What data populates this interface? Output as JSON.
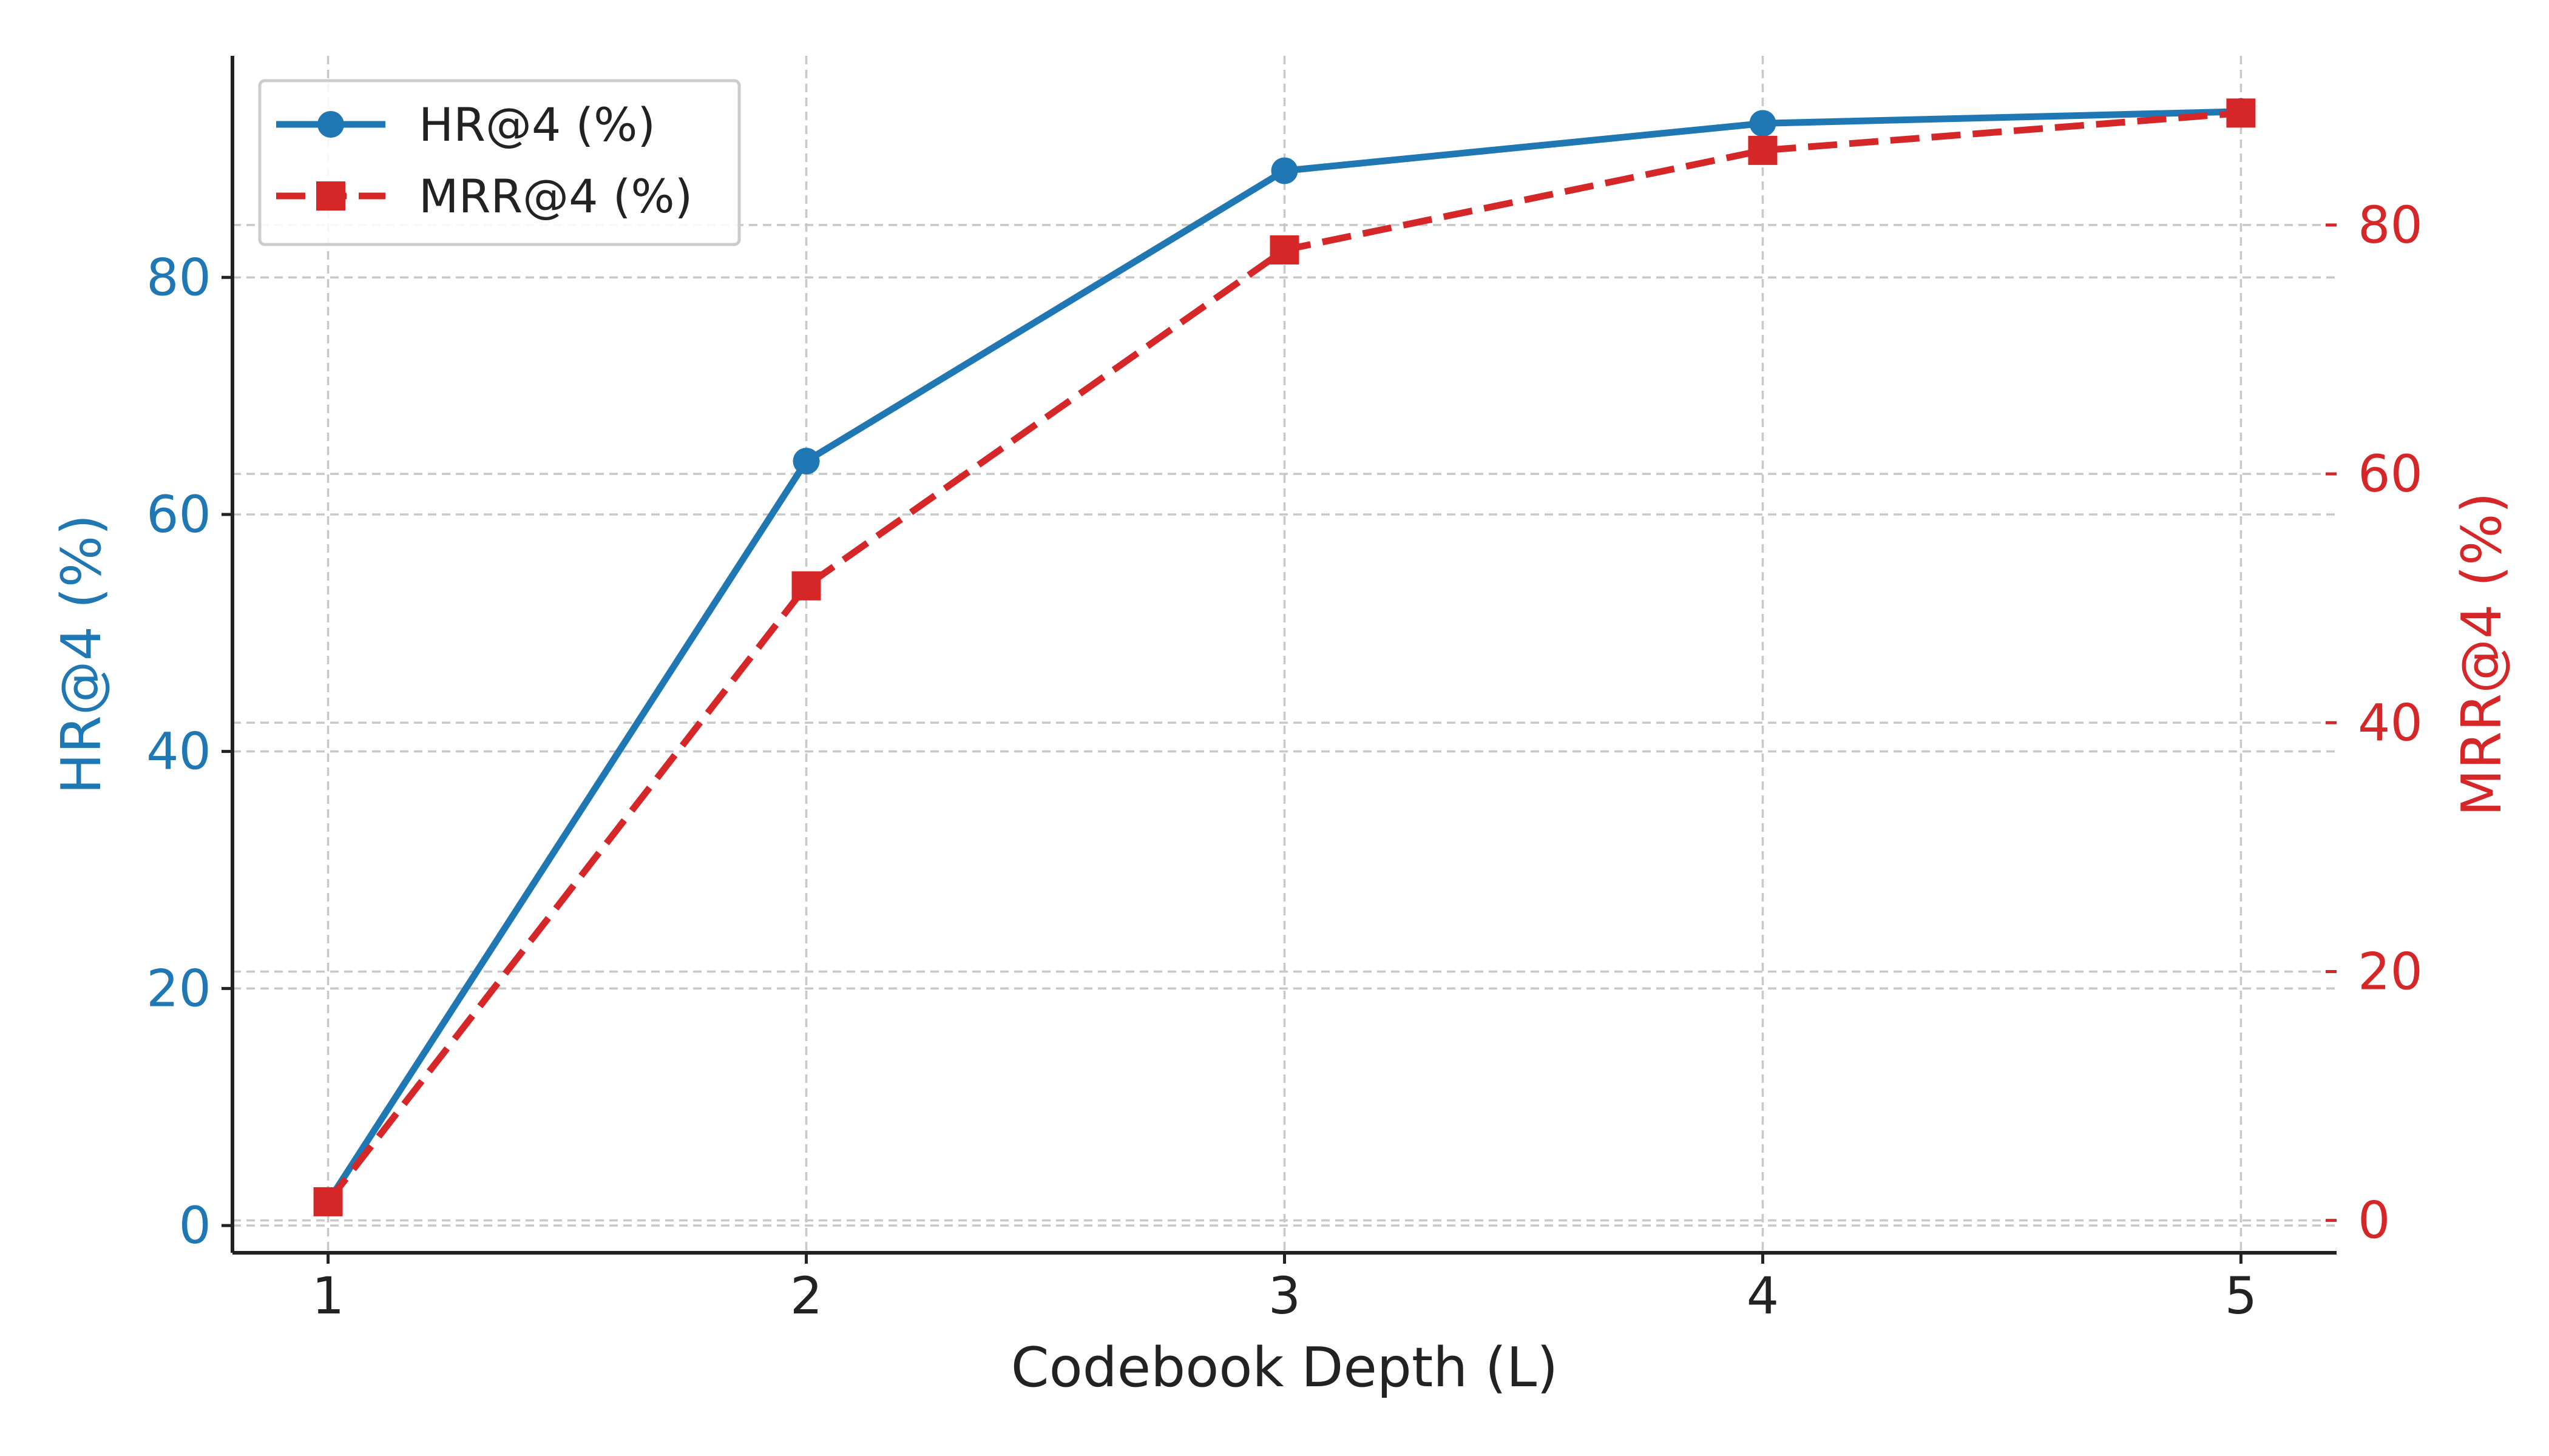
{
  "chart_data": {
    "type": "line",
    "title": "",
    "xlabel": "Codebook Depth (L)",
    "ylabel_left": "HR@4 (%)",
    "ylabel_right": "MRR@4 (%)",
    "x": [
      1,
      2,
      3,
      4,
      5
    ],
    "x_ticks": [
      "1",
      "2",
      "3",
      "4",
      "5"
    ],
    "xlim": [
      0.8,
      5.2
    ],
    "left_axis": {
      "ylim": [
        -2.3,
        98.7
      ],
      "ticks": [
        "0",
        "20",
        "40",
        "60",
        "80"
      ],
      "tick_values": [
        0,
        20,
        40,
        60,
        80
      ],
      "color": "#1f77b4"
    },
    "right_axis": {
      "ylim": [
        -2.6,
        93.6
      ],
      "ticks": [
        "0",
        "20",
        "40",
        "60",
        "80"
      ],
      "tick_values": [
        0,
        20,
        40,
        60,
        80
      ],
      "color": "#d62728"
    },
    "grid": true,
    "legend_position": "top-left",
    "series": [
      {
        "name": "HR@4 (%)",
        "axis": "left",
        "values": [
          2.0,
          64.5,
          89.0,
          93.0,
          94.0
        ],
        "color": "#1f77b4",
        "marker": "circle",
        "style": "solid"
      },
      {
        "name": "MRR@4 (%)",
        "axis": "right",
        "values": [
          1.5,
          51.0,
          78.0,
          86.0,
          89.0
        ],
        "color": "#d62728",
        "marker": "square",
        "style": "dashed"
      }
    ]
  }
}
